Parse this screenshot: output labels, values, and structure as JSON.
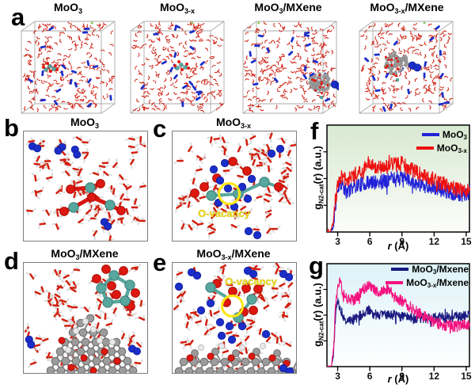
{
  "letters": [
    "a",
    "b",
    "c",
    "d",
    "e",
    "f",
    "g"
  ],
  "labels": {
    "o_vacancy": "O-vacancy"
  },
  "colors": {
    "water_oxygen_red": "#d2200f",
    "water_hydrogen_white": "#dcdcdc",
    "n2_blue": "#1b2ec9",
    "mo_teal": "#58a79e",
    "oxygen_sphere_red": "#dd1810",
    "mxene_gray": "#9c9c9c",
    "box_edge_gray": "#a9a9a9",
    "vacancy_yellow": "#ffe70f"
  },
  "panel_a": {
    "boxes": [
      {
        "title": {
          "base": "MoO",
          "sub": "3",
          "rest": ""
        }
      },
      {
        "title": {
          "base": "MoO",
          "sub": "3-x",
          "rest": ""
        }
      },
      {
        "title": {
          "base": "MoO",
          "sub": "3",
          "rest": "/MXene"
        }
      },
      {
        "title": {
          "base": "MoO",
          "sub": "3-x",
          "rest": "/MXene"
        }
      }
    ]
  },
  "panels": {
    "b": {
      "title": {
        "base": "MoO",
        "sub": "3",
        "rest": ""
      }
    },
    "c": {
      "title": {
        "base": "MoO",
        "sub": "3-x",
        "rest": ""
      }
    },
    "d": {
      "title": {
        "base": "MoO",
        "sub": "3",
        "rest": "/MXene"
      }
    },
    "e": {
      "title": {
        "base": "MoO",
        "sub": "3-x",
        "rest": "/MXene"
      }
    }
  },
  "chart_data": [
    {
      "id": "f",
      "type": "line",
      "title": "",
      "xlabel_r": "r",
      "xlabel_unit": " (Å)",
      "ylabel_g": "g",
      "ylabel_sub": "N2-cat",
      "ylabel_rest": "(r)  (a.u.)",
      "xlim": [
        2,
        15.3
      ],
      "xticks": [
        3,
        6,
        9,
        12,
        15
      ],
      "ylim": "arbitrary units, no y ticks",
      "grid": false,
      "legend_position": "top-right",
      "bg_top": "#d8e9d1",
      "bg_bottom": "#fcfdfa",
      "series": [
        {
          "name_base": "MoO",
          "name_sub": "3",
          "name_rest": "",
          "color": "#2222d8",
          "noise": 0.07,
          "seed": 11,
          "keypoints": [
            [
              2.3,
              0
            ],
            [
              2.6,
              0.04
            ],
            [
              2.8,
              0.25
            ],
            [
              3.0,
              0.4
            ],
            [
              3.3,
              0.45
            ],
            [
              3.8,
              0.36
            ],
            [
              4.5,
              0.42
            ],
            [
              5.5,
              0.44
            ],
            [
              6.5,
              0.45
            ],
            [
              7.5,
              0.47
            ],
            [
              8.5,
              0.5
            ],
            [
              9.5,
              0.48
            ],
            [
              10.5,
              0.44
            ],
            [
              11.5,
              0.41
            ],
            [
              12.5,
              0.39
            ],
            [
              13.5,
              0.36
            ],
            [
              14.5,
              0.34
            ],
            [
              15.3,
              0.36
            ]
          ]
        },
        {
          "name_base": "MoO",
          "name_sub": "3-x",
          "name_rest": "",
          "color": "#ee1111",
          "noise": 0.07,
          "seed": 23,
          "keypoints": [
            [
              2.3,
              0
            ],
            [
              2.6,
              0.08
            ],
            [
              2.8,
              0.32
            ],
            [
              3.0,
              0.45
            ],
            [
              3.3,
              0.5
            ],
            [
              3.8,
              0.47
            ],
            [
              4.5,
              0.52
            ],
            [
              5.5,
              0.58
            ],
            [
              6.0,
              0.62
            ],
            [
              7.0,
              0.58
            ],
            [
              8.0,
              0.61
            ],
            [
              9.0,
              0.62
            ],
            [
              10.0,
              0.56
            ],
            [
              11.0,
              0.52
            ],
            [
              12.0,
              0.47
            ],
            [
              13.0,
              0.43
            ],
            [
              14.0,
              0.39
            ],
            [
              15.3,
              0.37
            ]
          ]
        }
      ]
    },
    {
      "id": "g",
      "type": "line",
      "title": "",
      "xlabel_r": "r",
      "xlabel_unit": " (Å)",
      "ylabel_g": "g",
      "ylabel_sub": "N2-cat",
      "ylabel_rest": "(r)  (a.u.)",
      "xlim": [
        2,
        15.3
      ],
      "xticks": [
        3,
        6,
        9,
        12,
        15
      ],
      "ylim": "arbitrary units, no y ticks",
      "grid": false,
      "legend_position": "top-right",
      "bg_top": "#ddf2f8",
      "bg_bottom": "#feffff",
      "series": [
        {
          "name_base": "MoO",
          "name_sub": "3",
          "name_rest": "/Mxene",
          "color": "#1a1a80",
          "noise": 0.05,
          "seed": 37,
          "keypoints": [
            [
              2.4,
              0
            ],
            [
              2.6,
              0.1
            ],
            [
              2.8,
              0.5
            ],
            [
              3.0,
              0.63
            ],
            [
              3.2,
              0.55
            ],
            [
              3.6,
              0.46
            ],
            [
              4.2,
              0.43
            ],
            [
              5.0,
              0.47
            ],
            [
              5.8,
              0.54
            ],
            [
              6.3,
              0.5
            ],
            [
              7.0,
              0.48
            ],
            [
              8.0,
              0.49
            ],
            [
              9.0,
              0.47
            ],
            [
              10.0,
              0.46
            ],
            [
              11.0,
              0.46
            ],
            [
              12.0,
              0.46
            ],
            [
              13.0,
              0.46
            ],
            [
              14.0,
              0.47
            ],
            [
              15.3,
              0.49
            ]
          ]
        },
        {
          "name_base": "MoO",
          "name_sub": "3-x",
          "name_rest": "/Mxene",
          "color": "#f4117e",
          "noise": 0.055,
          "seed": 53,
          "keypoints": [
            [
              2.4,
              0
            ],
            [
              2.6,
              0.15
            ],
            [
              2.8,
              0.55
            ],
            [
              3.0,
              0.78
            ],
            [
              3.2,
              0.82
            ],
            [
              3.5,
              0.68
            ],
            [
              4.0,
              0.64
            ],
            [
              4.6,
              0.63
            ],
            [
              5.3,
              0.72
            ],
            [
              6.0,
              0.78
            ],
            [
              6.6,
              0.7
            ],
            [
              7.2,
              0.71
            ],
            [
              7.7,
              0.74
            ],
            [
              8.3,
              0.66
            ],
            [
              9.0,
              0.62
            ],
            [
              10.0,
              0.55
            ],
            [
              11.0,
              0.48
            ],
            [
              12.0,
              0.42
            ],
            [
              13.0,
              0.39
            ],
            [
              14.0,
              0.38
            ],
            [
              15.3,
              0.39
            ]
          ]
        }
      ]
    }
  ]
}
